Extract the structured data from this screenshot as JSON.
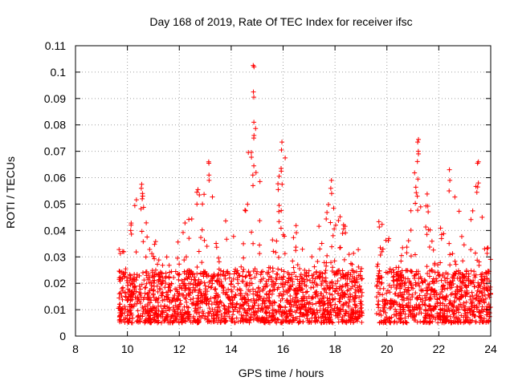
{
  "chart_data": {
    "type": "scatter",
    "title": "Day 168 of 2019, Rate Of TEC Index for receiver ifsc",
    "xlabel": "GPS time / hours",
    "ylabel": "ROTI / TECUs",
    "xlim": [
      8,
      24
    ],
    "ylim": [
      0,
      0.11
    ],
    "xticks": [
      8,
      10,
      12,
      14,
      16,
      18,
      20,
      22,
      24
    ],
    "yticks": [
      0,
      0.01,
      0.02,
      0.03,
      0.04,
      0.05,
      0.06,
      0.07,
      0.08,
      0.09,
      0.1,
      0.11
    ],
    "xtick_labels": [
      "8",
      "10",
      "12",
      "14",
      "16",
      "18",
      "20",
      "22",
      "24"
    ],
    "ytick_labels": [
      "0",
      "0.01",
      "0.02",
      "0.03",
      "0.04",
      "0.05",
      "0.06",
      "0.07",
      "0.08",
      "0.09",
      "0.1",
      "0.11"
    ],
    "grid": true,
    "marker": "plus",
    "color": "#ff0000",
    "series": [
      {
        "name": "ROTI",
        "segments": [
          {
            "x_start": 9.65,
            "x_end": 19.05
          },
          {
            "x_start": 19.6,
            "x_end": 24.0
          }
        ],
        "baseline_range": [
          0.005,
          0.025
        ],
        "envelope": [
          {
            "x": 9.7,
            "y": 0.035
          },
          {
            "x": 10.0,
            "y": 0.04
          },
          {
            "x": 10.5,
            "y": 0.057
          },
          {
            "x": 10.9,
            "y": 0.04
          },
          {
            "x": 11.5,
            "y": 0.038
          },
          {
            "x": 12.0,
            "y": 0.036
          },
          {
            "x": 12.6,
            "y": 0.055
          },
          {
            "x": 13.1,
            "y": 0.065
          },
          {
            "x": 13.6,
            "y": 0.048
          },
          {
            "x": 14.0,
            "y": 0.046
          },
          {
            "x": 14.4,
            "y": 0.044
          },
          {
            "x": 14.8,
            "y": 0.102
          },
          {
            "x": 15.2,
            "y": 0.05
          },
          {
            "x": 15.6,
            "y": 0.048
          },
          {
            "x": 16.0,
            "y": 0.073
          },
          {
            "x": 16.5,
            "y": 0.045
          },
          {
            "x": 17.0,
            "y": 0.045
          },
          {
            "x": 17.5,
            "y": 0.045
          },
          {
            "x": 17.8,
            "y": 0.058
          },
          {
            "x": 18.3,
            "y": 0.043
          },
          {
            "x": 18.9,
            "y": 0.035
          },
          {
            "x": 19.7,
            "y": 0.045
          },
          {
            "x": 20.2,
            "y": 0.035
          },
          {
            "x": 20.6,
            "y": 0.035
          },
          {
            "x": 21.2,
            "y": 0.074
          },
          {
            "x": 21.8,
            "y": 0.04
          },
          {
            "x": 22.4,
            "y": 0.063
          },
          {
            "x": 22.8,
            "y": 0.048
          },
          {
            "x": 23.2,
            "y": 0.045
          },
          {
            "x": 23.5,
            "y": 0.066
          },
          {
            "x": 23.8,
            "y": 0.035
          },
          {
            "x": 24.0,
            "y": 0.032
          }
        ],
        "spikes": [
          {
            "x": 14.85,
            "values": [
              0.1025,
              0.102,
              0.0925,
              0.0905,
              0.081,
              0.076,
              0.075,
              0.0645,
              0.061,
              0.057
            ]
          },
          {
            "x": 15.95,
            "values": [
              0.0735,
              0.0705,
              0.0635,
              0.0625,
              0.0575
            ]
          },
          {
            "x": 21.2,
            "values": [
              0.0745,
              0.0735,
              0.07,
              0.069,
              0.0595,
              0.053
            ]
          },
          {
            "x": 23.5,
            "values": [
              0.066,
              0.0655,
              0.058,
              0.0565
            ]
          },
          {
            "x": 13.15,
            "values": [
              0.066,
              0.0655,
              0.061,
              0.059
            ]
          },
          {
            "x": 17.85,
            "values": [
              0.059,
              0.056,
              0.054
            ]
          },
          {
            "x": 22.4,
            "values": [
              0.063,
              0.059,
              0.055
            ]
          },
          {
            "x": 10.55,
            "values": [
              0.0575,
              0.056,
              0.054,
              0.052
            ]
          },
          {
            "x": 12.7,
            "values": [
              0.0555,
              0.0545,
              0.05
            ]
          }
        ]
      }
    ]
  }
}
